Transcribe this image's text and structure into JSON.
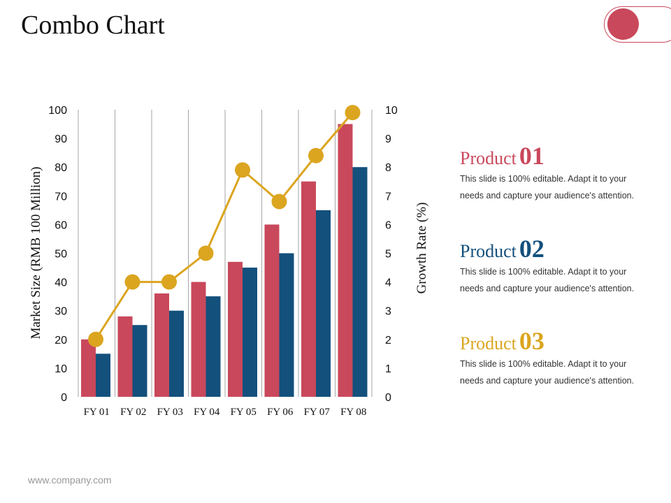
{
  "slide": {
    "title": "Combo Chart",
    "footer": "www.company.com"
  },
  "colors": {
    "red": "#c9485b",
    "blue": "#13507c",
    "gold": "#dba520",
    "grid": "#a6a6a6"
  },
  "products": [
    {
      "name": "Product",
      "number": "01",
      "color": "#c9485b",
      "text": "This slide is 100% editable. Adapt it to your needs and capture your audience's attention."
    },
    {
      "name": "Product",
      "number": "02",
      "color": "#13507c",
      "text": "This slide is 100% editable. Adapt it to your needs and capture your audience's attention."
    },
    {
      "name": "Product",
      "number": "03",
      "color": "#dba520",
      "text": "This slide is 100% editable. Adapt it to your needs and capture your audience's attention."
    }
  ],
  "chart_data": {
    "type": "bar",
    "title": "",
    "categories": [
      "FY 01",
      "FY 02",
      "FY 03",
      "FY 04",
      "FY 05",
      "FY 06",
      "FY 07",
      "FY 08"
    ],
    "series": [
      {
        "name": "Product 01",
        "type": "bar",
        "axis": "left",
        "values": [
          20,
          28,
          36,
          40,
          47,
          60,
          75,
          95
        ]
      },
      {
        "name": "Product 02",
        "type": "bar",
        "axis": "left",
        "values": [
          15,
          25,
          30,
          35,
          45,
          50,
          65,
          80
        ]
      },
      {
        "name": "Product 03",
        "type": "line",
        "axis": "right",
        "values": [
          2,
          4,
          4,
          5,
          7.9,
          6.8,
          8.4,
          9.9
        ]
      }
    ],
    "ylabel": "Market Size (RMB 100 Million)",
    "ylim": [
      0,
      100
    ],
    "yticks": [
      "0",
      "10",
      "20",
      "30",
      "40",
      "50",
      "60",
      "70",
      "80",
      "90",
      "100"
    ],
    "y2label": "Growth Rate (%)",
    "y2lim": [
      0,
      10
    ],
    "y2ticks": [
      "0",
      "1",
      "2",
      "3",
      "4",
      "5",
      "6",
      "7",
      "8",
      "9",
      "10"
    ],
    "grid": "vertical"
  }
}
